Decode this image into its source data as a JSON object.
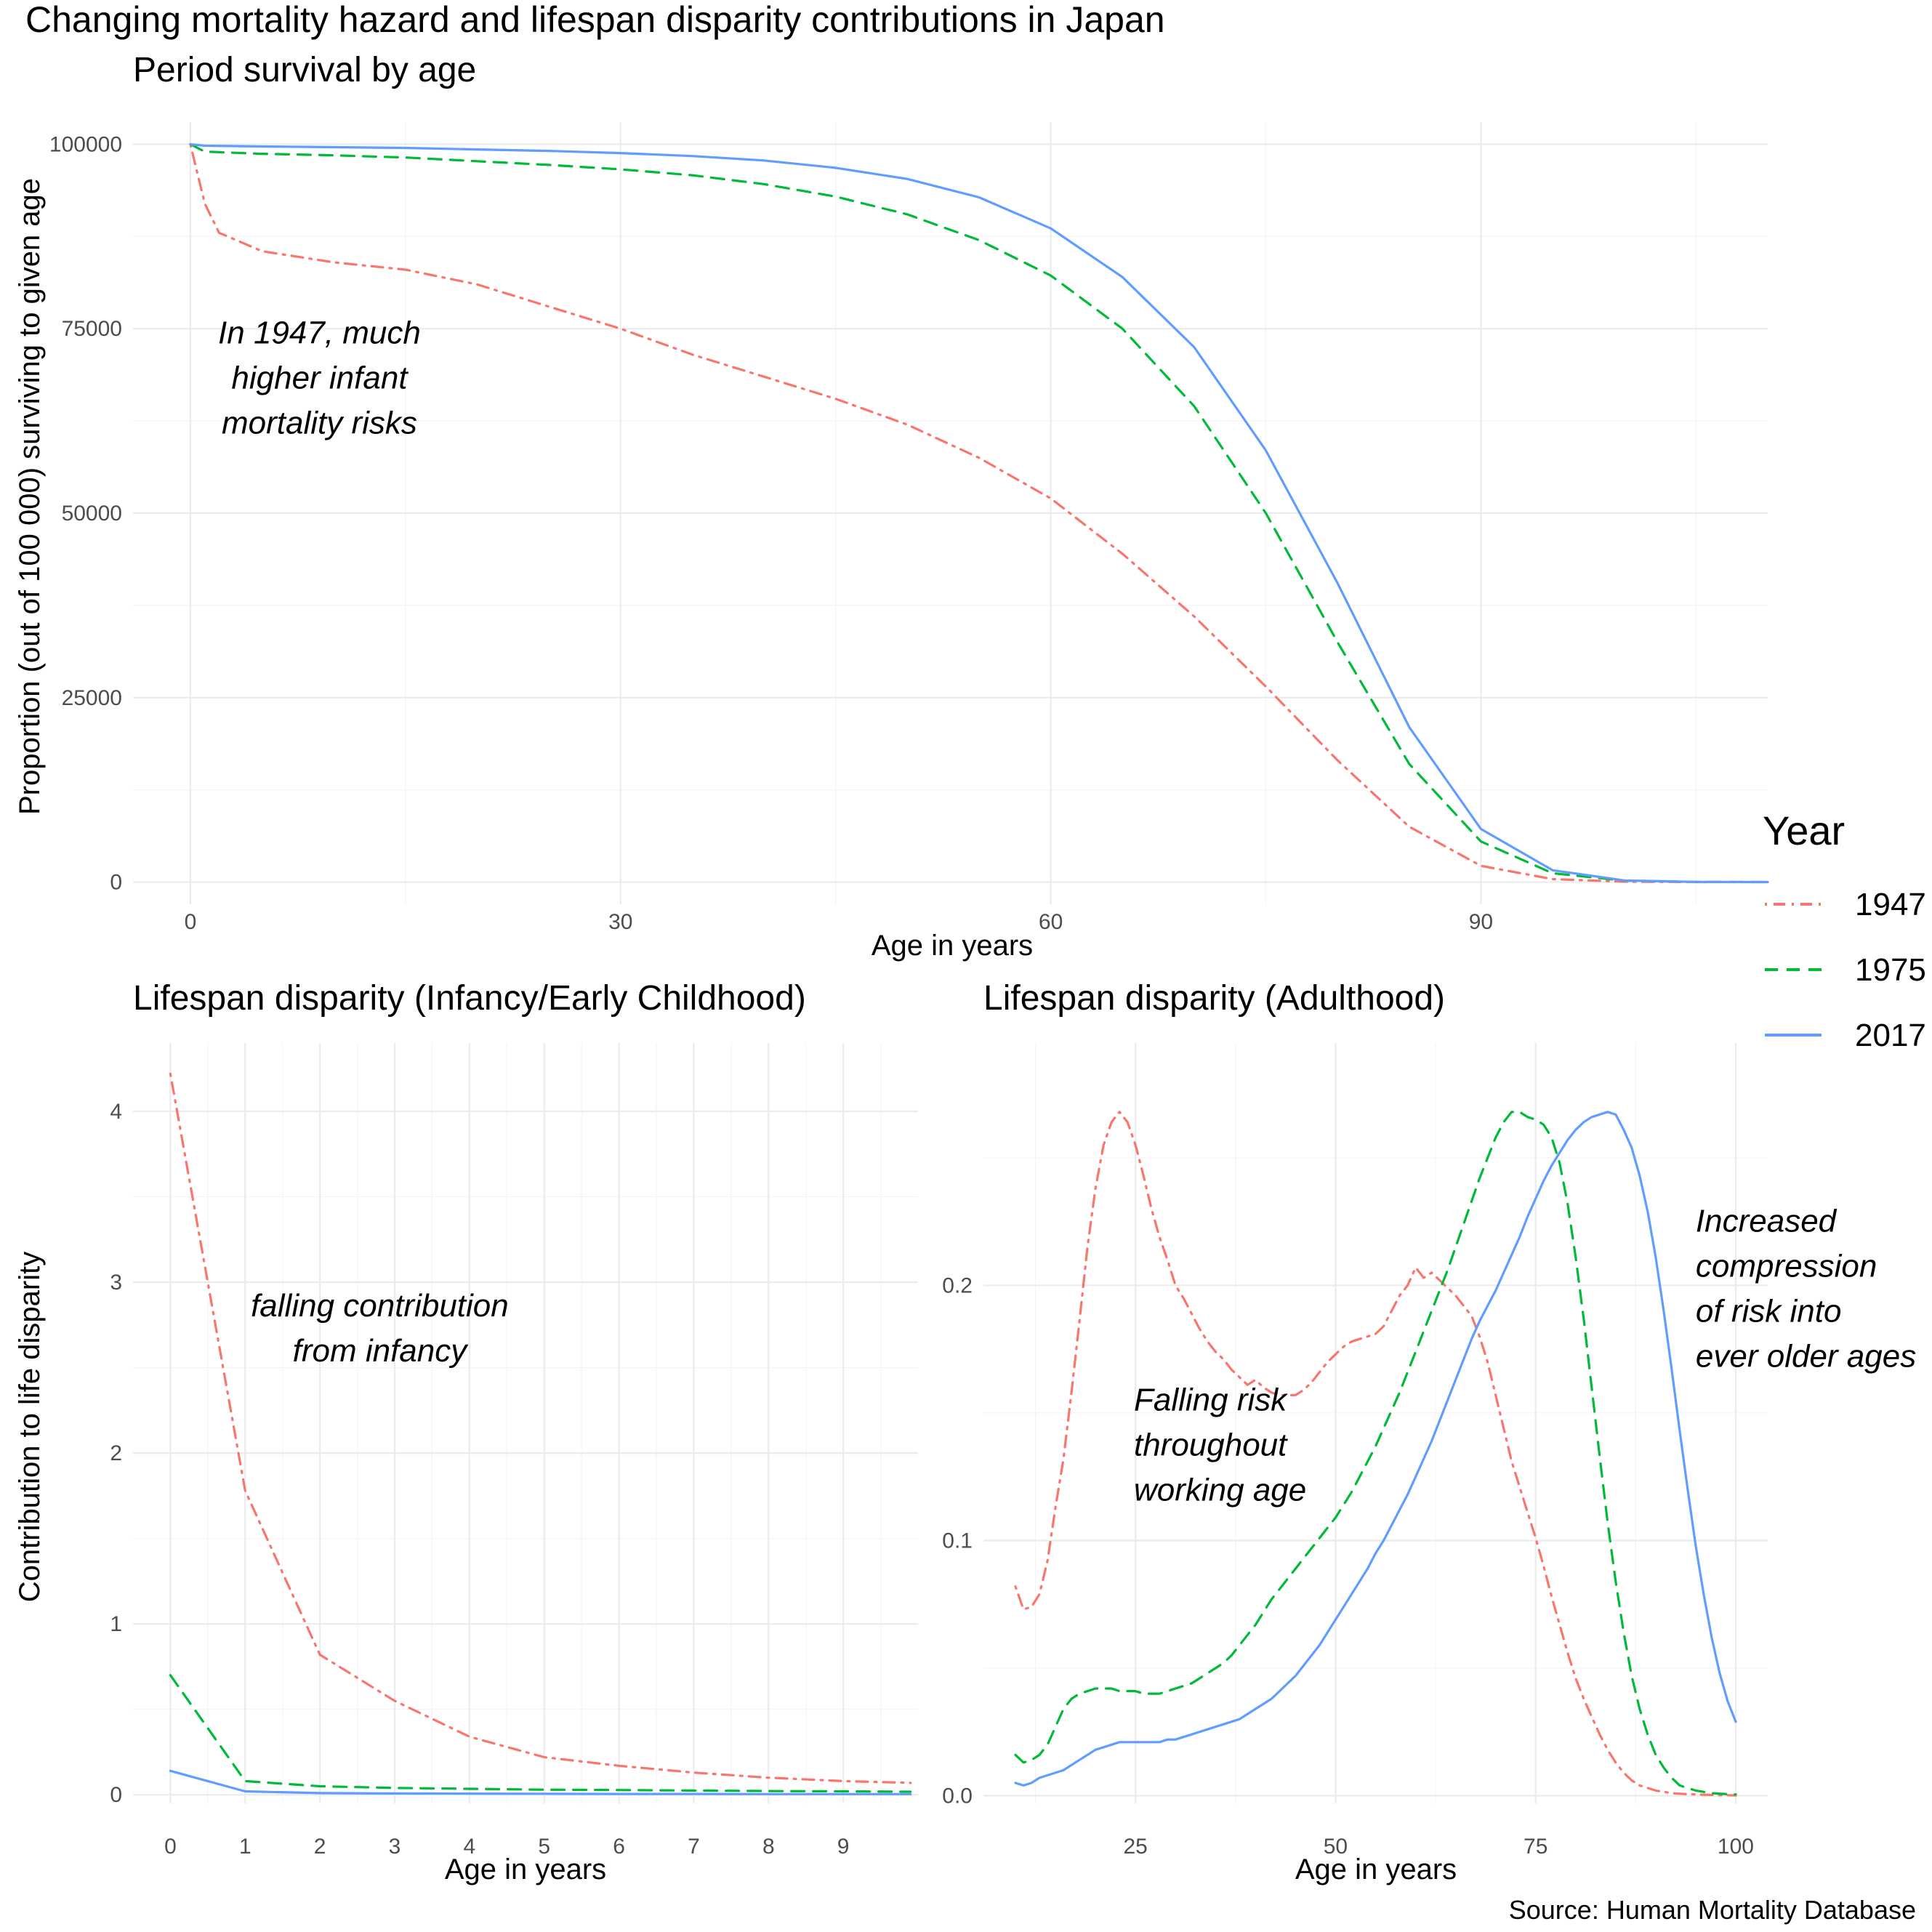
{
  "title": "Changing mortality hazard and lifespan disparity contributions in Japan",
  "caption": "Source: Human Mortality Database",
  "legend": {
    "title": "Year",
    "items": [
      {
        "label": "1947",
        "color": "#F8766D",
        "dash": "dotdash"
      },
      {
        "label": "1975",
        "color": "#00BA38",
        "dash": "dashed"
      },
      {
        "label": "2017",
        "color": "#619CFF",
        "dash": "solid"
      }
    ]
  },
  "chart_data": [
    {
      "type": "line",
      "title": "Period survival by age",
      "xlabel": "Age in years",
      "ylabel": "Proportion (out of 100 000) surviving to given age",
      "xlim": [
        -4,
        110
      ],
      "ylim": [
        -3000,
        103000
      ],
      "xticks": [
        0,
        30,
        60,
        90
      ],
      "xticks_minor": [
        15,
        45,
        75,
        105
      ],
      "yticks": [
        0,
        25000,
        50000,
        75000,
        100000
      ],
      "yticks_minor": [
        12500,
        37500,
        62500,
        87500
      ],
      "grid": true,
      "annotations": [
        {
          "text": "In 1947, much\nhigher infant\nmortality risks",
          "x": 9,
          "y": 73000
        }
      ],
      "series": [
        {
          "name": "1947",
          "x": [
            0,
            1,
            2,
            5,
            10,
            15,
            20,
            25,
            30,
            35,
            40,
            45,
            50,
            55,
            60,
            65,
            70,
            75,
            80,
            85,
            90,
            95,
            100,
            105,
            110
          ],
          "y": [
            100000,
            92000,
            88000,
            85500,
            84000,
            83000,
            81000,
            78000,
            75000,
            71500,
            68500,
            65500,
            62000,
            57500,
            52000,
            44500,
            36000,
            26500,
            16500,
            7500,
            2200,
            400,
            50,
            5,
            0
          ]
        },
        {
          "name": "1975",
          "x": [
            0,
            1,
            5,
            10,
            15,
            20,
            25,
            30,
            35,
            40,
            45,
            50,
            55,
            60,
            65,
            70,
            75,
            80,
            85,
            90,
            95,
            100,
            105,
            110
          ],
          "y": [
            100000,
            99000,
            98700,
            98500,
            98200,
            97700,
            97200,
            96600,
            95800,
            94600,
            92900,
            90500,
            87000,
            82200,
            75000,
            64500,
            50000,
            32500,
            16000,
            5500,
            1200,
            200,
            20,
            0
          ]
        },
        {
          "name": "2017",
          "x": [
            0,
            1,
            5,
            10,
            15,
            20,
            25,
            30,
            35,
            40,
            45,
            50,
            55,
            60,
            65,
            70,
            75,
            80,
            85,
            90,
            95,
            100,
            105,
            110
          ],
          "y": [
            100000,
            99800,
            99700,
            99600,
            99500,
            99300,
            99100,
            98800,
            98400,
            97800,
            96800,
            95300,
            92800,
            88600,
            82000,
            72500,
            58500,
            40500,
            21000,
            7200,
            1600,
            220,
            25,
            0
          ]
        }
      ]
    },
    {
      "type": "line",
      "title": "Lifespan disparity (Infancy/Early Childhood)",
      "xlabel": "Age in years",
      "ylabel": "Contribution to life disparity",
      "xlim": [
        -0.5,
        10.0
      ],
      "ylim": [
        -0.05,
        4.4
      ],
      "xticks": [
        0,
        1,
        2,
        3,
        4,
        5,
        6,
        7,
        8,
        9
      ],
      "yticks": [
        0,
        1,
        2,
        3,
        4
      ],
      "yticks_minor": [
        0.5,
        1.5,
        2.5,
        3.5
      ],
      "grid": true,
      "annotations": [
        {
          "text": "falling contribution\nfrom infancy",
          "x": 2.8,
          "y": 2.8
        }
      ],
      "series": [
        {
          "name": "1947",
          "x": [
            0,
            1,
            2,
            3,
            4,
            5,
            6,
            7,
            8,
            9,
            9.9
          ],
          "y": [
            4.22,
            1.78,
            0.82,
            0.55,
            0.34,
            0.22,
            0.17,
            0.13,
            0.1,
            0.08,
            0.07
          ]
        },
        {
          "name": "1975",
          "x": [
            0,
            1,
            2,
            3,
            4,
            5,
            6,
            7,
            8,
            9,
            9.9
          ],
          "y": [
            0.7,
            0.08,
            0.05,
            0.04,
            0.035,
            0.03,
            0.028,
            0.025,
            0.022,
            0.02,
            0.018
          ]
        },
        {
          "name": "2017",
          "x": [
            0,
            1,
            2,
            3,
            4,
            5,
            6,
            7,
            8,
            9,
            9.9
          ],
          "y": [
            0.14,
            0.02,
            0.01,
            0.008,
            0.007,
            0.006,
            0.005,
            0.005,
            0.004,
            0.004,
            0.004
          ]
        }
      ]
    },
    {
      "type": "line",
      "title": "Lifespan disparity (Adulthood)",
      "xlabel": "Age in years",
      "ylabel": "",
      "xlim": [
        6,
        104
      ],
      "ylim": [
        -0.003,
        0.295
      ],
      "xticks": [
        25,
        50,
        75,
        100
      ],
      "xticks_minor": [
        12.5,
        37.5,
        62.5,
        87.5
      ],
      "yticks": [
        0.0,
        0.1,
        0.2
      ],
      "yticks_minor": [
        0.05,
        0.15,
        0.25
      ],
      "grid": true,
      "annotations": [
        {
          "text": "Falling risk\nthroughout\nworking age",
          "x": 24.8,
          "y": 0.151
        },
        {
          "text": "Increased\ncompression\nof risk into\never older ages",
          "x": 95,
          "y": 0.221
        }
      ],
      "series": [
        {
          "name": "1947",
          "x": [
            10,
            11,
            12,
            13,
            14,
            15,
            16,
            17,
            18,
            19,
            20,
            21,
            22,
            23,
            24,
            25,
            26,
            27,
            28,
            29,
            30,
            31,
            32,
            33,
            34,
            35,
            36,
            37,
            38,
            39,
            40,
            41,
            42,
            43,
            44,
            45,
            46,
            47,
            48,
            49,
            50,
            51,
            52,
            53,
            54,
            55,
            56,
            57,
            58,
            59,
            60,
            61,
            62,
            63,
            64,
            65,
            66,
            67,
            68,
            69,
            70,
            71,
            72,
            73,
            74,
            75,
            76,
            77,
            78,
            79,
            80,
            81,
            82,
            83,
            84,
            85,
            86,
            87,
            88,
            89,
            90,
            91,
            92,
            93,
            94,
            95,
            96,
            97,
            98,
            99,
            100
          ],
          "y": [
            0.082,
            0.073,
            0.074,
            0.079,
            0.092,
            0.113,
            0.132,
            0.158,
            0.186,
            0.215,
            0.238,
            0.255,
            0.264,
            0.268,
            0.264,
            0.255,
            0.243,
            0.23,
            0.219,
            0.21,
            0.2,
            0.195,
            0.189,
            0.183,
            0.178,
            0.174,
            0.171,
            0.167,
            0.164,
            0.161,
            0.163,
            0.16,
            0.158,
            0.157,
            0.157,
            0.157,
            0.159,
            0.162,
            0.166,
            0.17,
            0.173,
            0.176,
            0.178,
            0.179,
            0.18,
            0.181,
            0.184,
            0.19,
            0.196,
            0.2,
            0.207,
            0.203,
            0.205,
            0.202,
            0.199,
            0.196,
            0.192,
            0.188,
            0.18,
            0.17,
            0.157,
            0.144,
            0.131,
            0.121,
            0.111,
            0.101,
            0.09,
            0.078,
            0.067,
            0.056,
            0.046,
            0.038,
            0.031,
            0.024,
            0.018,
            0.013,
            0.009,
            0.006,
            0.004,
            0.003,
            0.002,
            0.0015,
            0.001,
            0.0008,
            0.0006,
            0.0005,
            0.0004,
            0.0003,
            0.0002,
            0.0002,
            0.0001
          ]
        },
        {
          "name": "1975",
          "x": [
            10,
            11,
            12,
            13,
            14,
            15,
            16,
            17,
            18,
            19,
            20,
            21,
            22,
            23,
            24,
            25,
            26,
            27,
            28,
            29,
            30,
            31,
            32,
            33,
            34,
            35,
            36,
            37,
            38,
            39,
            40,
            41,
            42,
            43,
            44,
            45,
            46,
            47,
            48,
            49,
            50,
            51,
            52,
            53,
            54,
            55,
            56,
            57,
            58,
            59,
            60,
            61,
            62,
            63,
            64,
            65,
            66,
            67,
            68,
            69,
            70,
            71,
            72,
            73,
            74,
            75,
            76,
            77,
            78,
            79,
            80,
            81,
            82,
            83,
            84,
            85,
            86,
            87,
            88,
            89,
            90,
            91,
            92,
            93,
            94,
            95,
            96,
            97,
            98,
            99,
            100
          ],
          "y": [
            0.016,
            0.013,
            0.014,
            0.016,
            0.02,
            0.027,
            0.034,
            0.038,
            0.04,
            0.041,
            0.042,
            0.042,
            0.042,
            0.041,
            0.041,
            0.041,
            0.04,
            0.04,
            0.04,
            0.041,
            0.042,
            0.043,
            0.044,
            0.046,
            0.048,
            0.05,
            0.052,
            0.055,
            0.059,
            0.063,
            0.067,
            0.072,
            0.077,
            0.081,
            0.085,
            0.089,
            0.093,
            0.097,
            0.101,
            0.105,
            0.109,
            0.114,
            0.119,
            0.125,
            0.131,
            0.137,
            0.144,
            0.151,
            0.158,
            0.166,
            0.174,
            0.182,
            0.19,
            0.198,
            0.206,
            0.215,
            0.224,
            0.233,
            0.242,
            0.25,
            0.258,
            0.264,
            0.268,
            0.268,
            0.266,
            0.265,
            0.263,
            0.258,
            0.248,
            0.232,
            0.211,
            0.187,
            0.16,
            0.133,
            0.107,
            0.084,
            0.064,
            0.047,
            0.034,
            0.024,
            0.016,
            0.011,
            0.007,
            0.004,
            0.003,
            0.002,
            0.0015,
            0.001,
            0.0008,
            0.0006,
            0.0005
          ]
        },
        {
          "name": "2017",
          "x": [
            10,
            11,
            12,
            13,
            14,
            15,
            16,
            17,
            18,
            19,
            20,
            21,
            22,
            23,
            24,
            25,
            26,
            27,
            28,
            29,
            30,
            31,
            32,
            33,
            34,
            35,
            36,
            37,
            38,
            39,
            40,
            41,
            42,
            43,
            44,
            45,
            46,
            47,
            48,
            49,
            50,
            51,
            52,
            53,
            54,
            55,
            56,
            57,
            58,
            59,
            60,
            61,
            62,
            63,
            64,
            65,
            66,
            67,
            68,
            69,
            70,
            71,
            72,
            73,
            74,
            75,
            76,
            77,
            78,
            79,
            80,
            81,
            82,
            83,
            84,
            85,
            86,
            87,
            88,
            89,
            90,
            91,
            92,
            93,
            94,
            95,
            96,
            97,
            98,
            99,
            100
          ],
          "y": [
            0.005,
            0.004,
            0.005,
            0.007,
            0.008,
            0.009,
            0.01,
            0.012,
            0.014,
            0.016,
            0.018,
            0.019,
            0.02,
            0.021,
            0.021,
            0.021,
            0.021,
            0.021,
            0.021,
            0.022,
            0.022,
            0.023,
            0.024,
            0.025,
            0.026,
            0.027,
            0.028,
            0.029,
            0.03,
            0.032,
            0.034,
            0.036,
            0.038,
            0.041,
            0.044,
            0.047,
            0.051,
            0.055,
            0.059,
            0.064,
            0.069,
            0.074,
            0.079,
            0.084,
            0.089,
            0.095,
            0.1,
            0.106,
            0.112,
            0.118,
            0.125,
            0.132,
            0.139,
            0.147,
            0.155,
            0.163,
            0.171,
            0.179,
            0.186,
            0.192,
            0.198,
            0.205,
            0.212,
            0.219,
            0.227,
            0.234,
            0.241,
            0.247,
            0.252,
            0.257,
            0.261,
            0.264,
            0.266,
            0.267,
            0.268,
            0.267,
            0.261,
            0.254,
            0.243,
            0.229,
            0.211,
            0.19,
            0.167,
            0.143,
            0.12,
            0.098,
            0.079,
            0.062,
            0.048,
            0.037,
            0.029
          ]
        }
      ]
    }
  ]
}
